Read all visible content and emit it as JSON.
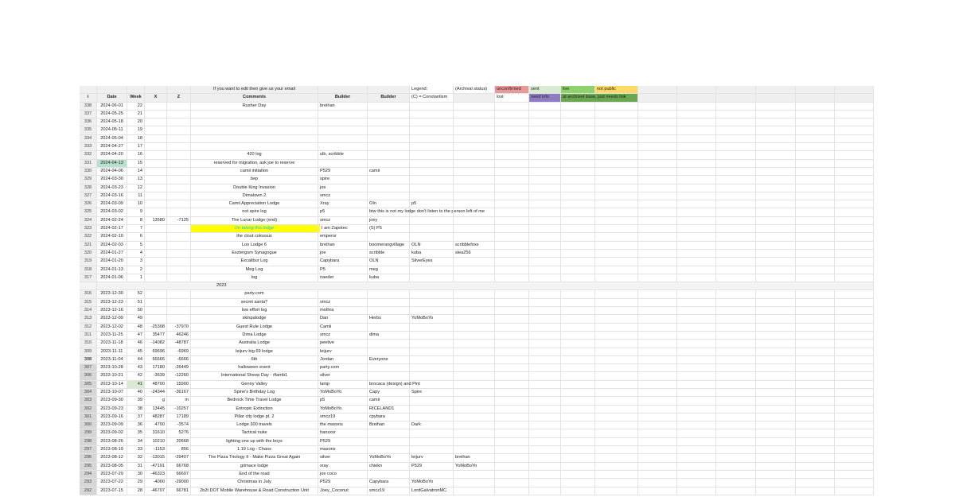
{
  "header1": {
    "comments_note": "If you want to edit then give us your email",
    "legend_label": "Legend:",
    "archival_label": "(Archival status)",
    "unconfirmed": "unconfirmed",
    "sent": "sent",
    "live": "live",
    "not_public": "not public"
  },
  "header2": {
    "cols": [
      "i",
      "Date",
      "Week",
      "X",
      "Z",
      "Comments",
      "Builder",
      "Builder"
    ],
    "constantism": "(C) = Constantism",
    "lost": "lost",
    "need_info": "need info",
    "archived": "at archived base, just needs link"
  },
  "colors": {
    "unconfirmed": "#ea9999",
    "sent": "#d9ead3",
    "live": "#8fd16b",
    "not_public": "#ffd966",
    "need_info": "#8e7cc3",
    "archived": "#6aa84f",
    "highlight_yellow": "#ffff00",
    "highlight_text": "#00c8ff",
    "selected_cell": "#b7e1cd"
  },
  "separator": "2023",
  "rows_2024": [
    [
      "338",
      "2024-06-01",
      "22",
      "",
      "",
      "Rusher Day",
      "breihan",
      "",
      "",
      "",
      ""
    ],
    [
      "337",
      "2024-05-25",
      "21",
      "",
      "",
      "",
      "",
      "",
      "",
      "",
      ""
    ],
    [
      "336",
      "2024-05-18",
      "20",
      "",
      "",
      "",
      "",
      "",
      "",
      "",
      ""
    ],
    [
      "335",
      "2024-05-11",
      "19",
      "",
      "",
      "",
      "",
      "",
      "",
      "",
      ""
    ],
    [
      "334",
      "2024-05-04",
      "18",
      "",
      "",
      "",
      "",
      "",
      "",
      "",
      ""
    ],
    [
      "333",
      "2024-04-27",
      "17",
      "",
      "",
      "",
      "",
      "",
      "",
      "",
      ""
    ],
    [
      "332",
      "2024-04-20",
      "16",
      "",
      "",
      "420 log",
      "ulb, scribble",
      "",
      "",
      "",
      ""
    ],
    [
      "331",
      "2024-04-13",
      "15",
      "",
      "",
      "reserved for migration, ask joe to reserve",
      "",
      "",
      "",
      "",
      ""
    ],
    [
      "330",
      "2024-04-06",
      "14",
      "",
      "",
      "camii initiation",
      "P529",
      "camii",
      "",
      "",
      ""
    ],
    [
      "329",
      "2024-03-30",
      "13",
      "",
      "",
      "bep",
      "spire",
      "",
      "",
      "",
      ""
    ],
    [
      "328",
      "2024-03-23",
      "12",
      "",
      "",
      "Double King Invasion",
      "joe",
      "",
      "",
      "",
      ""
    ],
    [
      "327",
      "2024-03-16",
      "11",
      "",
      "",
      "Dimatown 2",
      "smcz",
      "",
      "",
      "",
      ""
    ],
    [
      "326",
      "2024-03-09",
      "10",
      "",
      "",
      "Camii Appreciation Lodge",
      "Xray",
      "OIn",
      "p5",
      "",
      ""
    ],
    [
      "325",
      "2024-03-02",
      "9",
      "",
      "",
      "not spire log",
      "p5",
      "btw this is not  my lodge don't listen to the person left of me",
      "",
      "",
      ""
    ],
    [
      "324",
      "2024-02-24",
      "8",
      "13580",
      "-7125",
      "The Lunar Lodge (end)",
      "smcz",
      "joey",
      "",
      "",
      ""
    ],
    [
      "323",
      "2024-02-17",
      "7",
      "",
      "",
      "I'm taking this lodge",
      "I am Zapotec",
      "(S) P5",
      "",
      "",
      ""
    ],
    [
      "322",
      "2024-02-10",
      "6",
      "",
      "",
      "the clout colossus",
      "emperor",
      "",
      "",
      "",
      ""
    ],
    [
      "321",
      "2024-02-03",
      "5",
      "",
      "",
      "Loo Lodge 6",
      "breihan",
      "boomerangvillage",
      "OLN",
      "scribblefoxx",
      ""
    ],
    [
      "320",
      "2024-01-27",
      "4",
      "",
      "",
      "Esztergom Synagogue",
      "joe",
      "scribble",
      "kuba",
      "slea256",
      ""
    ],
    [
      "319",
      "2024-01-20",
      "3",
      "",
      "",
      "Excalibur Log",
      "Capybara",
      "OLN",
      "SilverEyes",
      "",
      ""
    ],
    [
      "318",
      "2024-01-13",
      "2",
      "",
      "",
      "Meg Log",
      "P5",
      "meg",
      "",
      "",
      ""
    ],
    [
      "317",
      "2024-01-06",
      "1",
      "",
      "",
      "log",
      "naeder",
      "kuba",
      "",
      "",
      ""
    ]
  ],
  "rows_2023": [
    [
      "316",
      "2023-12-30",
      "52",
      "",
      "",
      "party.com",
      "",
      "",
      "",
      "",
      ""
    ],
    [
      "315",
      "2023-12-23",
      "51",
      "",
      "",
      "secret santa?",
      "smcz",
      "",
      "",
      "",
      ""
    ],
    [
      "314",
      "2023-12-16",
      "50",
      "",
      "",
      "low effort log",
      "mothra",
      "",
      "",
      "",
      ""
    ],
    [
      "313",
      "2023-12-09",
      "49",
      "",
      "",
      "skinpalodge",
      "Dan",
      "Herbs",
      "YoMoBoYo",
      "",
      ""
    ],
    [
      "312",
      "2023-12-02",
      "48",
      "-25308",
      "-37970",
      "Guest Rule Lodge",
      "Camii",
      "",
      "",
      "",
      ""
    ],
    [
      "311",
      "2023-11-25",
      "47",
      "35477",
      "46246",
      "Dima Lodge",
      "smcz",
      "dima",
      "",
      "",
      ""
    ],
    [
      "310",
      "2023-11-18",
      "46",
      "-14082",
      "-48787",
      "Australia Lodge",
      "peetive",
      "",
      "",
      "",
      ""
    ],
    [
      "309",
      "2023-11-11",
      "45",
      "69696",
      "-6969",
      "leijurv big 69 lodge",
      "leijurv",
      "",
      "",
      "",
      ""
    ],
    [
      "308",
      "2023-11-04",
      "44",
      "66666",
      "-6666",
      "6th",
      "Jordan",
      "Everyone",
      "",
      "",
      ""
    ],
    [
      "307",
      "2023-10-28",
      "43",
      "17180",
      "-26449",
      "halloween event",
      "party.com",
      "",
      "",
      "",
      ""
    ],
    [
      "306",
      "2023-10-21",
      "42",
      "-3639",
      "-12260",
      "International Sheep Day - #lamb1",
      "silver",
      "",
      "",
      "",
      ""
    ],
    [
      "305",
      "2023-10-14",
      "41",
      "48700",
      "15900",
      "Genny Valley",
      "lamp",
      "brocaca (design) and Pint",
      "",
      "",
      ""
    ],
    [
      "304",
      "2023-10-07",
      "40",
      "-24344",
      "-36167",
      "Spine's Birthday Log",
      "YoMoBoYo",
      "Capy",
      "Spire",
      "",
      ""
    ],
    [
      "303",
      "2023-09-30",
      "39",
      "g",
      "m",
      "Bedrock Time Travel Lodge",
      "p5",
      "camii",
      "",
      "",
      ""
    ],
    [
      "302",
      "2023-09-23",
      "38",
      "13445",
      "-10257",
      "Entropic Extinction",
      "YoMoBoYo",
      "RICELAND1",
      "",
      "",
      ""
    ],
    [
      "301",
      "2023-09-16",
      "37",
      "48287",
      "17189",
      "Pillar city lodge pt. 2",
      "smcz19",
      "cpybara",
      "",
      "",
      ""
    ],
    [
      "300",
      "2023-09-09",
      "36",
      "4700",
      "-3574",
      "Lodge 300 travels",
      "the masons",
      "Breihan",
      "Dark",
      "",
      ""
    ],
    [
      "299",
      "2023-09-02",
      "35",
      "31610",
      "5276",
      "Tactical nuke",
      "hansxor",
      "",
      "",
      "",
      ""
    ],
    [
      "298",
      "2023-08-26",
      "34",
      "10210",
      "20668",
      "lighting one up with the boys",
      "P529",
      "",
      "",
      "",
      ""
    ],
    [
      "297",
      "2023-08-19",
      "33",
      "-1153",
      "856",
      "1.19 Log - Chaos",
      "masons",
      "",
      "",
      "",
      ""
    ],
    [
      "296",
      "2023-08-12",
      "32",
      "-13015",
      "-29407",
      "The Pizza Triology II - Make Pizza Great Again",
      "silver",
      "YoMoBoYo",
      "leijurv",
      "breihan",
      ""
    ],
    [
      "295",
      "2023-08-05",
      "31",
      "-47191",
      "66768",
      "grimace lodge",
      "xray",
      "chiekn",
      "P529",
      "YoMoBoYo",
      ""
    ],
    [
      "294",
      "2023-07-29",
      "30",
      "-46323",
      "66697",
      "End of the road",
      "joe coco",
      "",
      "",
      "",
      ""
    ],
    [
      "293",
      "2023-07-22",
      "29",
      "-4000",
      "-29000",
      "Christmas in July",
      "P529",
      "Capybara",
      "YoMoBoYo",
      "",
      ""
    ],
    [
      "292",
      "2023-07-15",
      "28",
      "-46707",
      "66781",
      "2b2t DOT Mobile Warehouse & Road Construction Unit",
      "Joey_Coconut",
      "smcz19",
      "LordGalvatronMC",
      "",
      ""
    ]
  ]
}
